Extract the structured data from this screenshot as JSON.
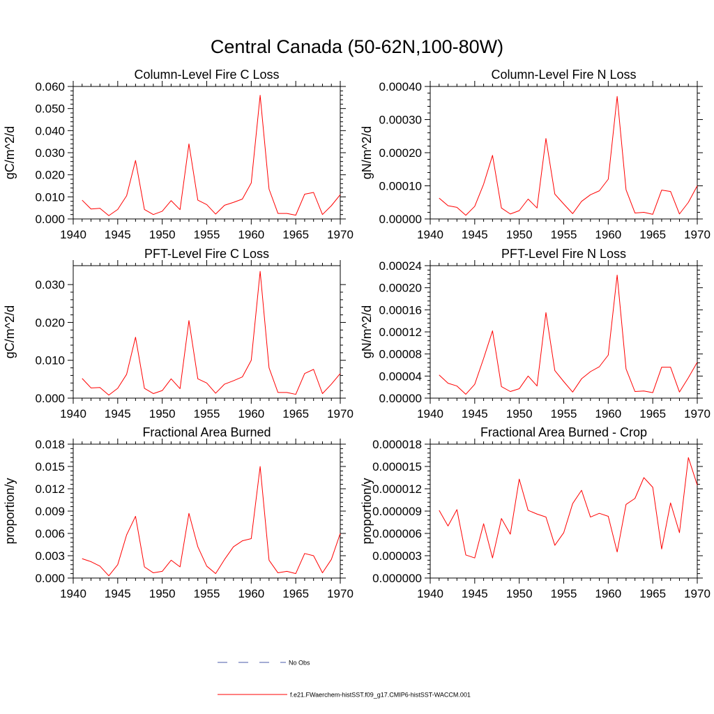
{
  "figure": {
    "title": "Central Canada (50-62N,100-80W)"
  },
  "legend": {
    "items": [
      {
        "label": "No Obs",
        "color": "#4a5aa8",
        "style": "dashed"
      },
      {
        "label": "f.e21.FWaerchem-histSST.f09_g17.CMIP6-histSST-WACCM.001",
        "color": "#ff0000",
        "style": "solid"
      }
    ]
  },
  "chart_data": [
    {
      "type": "line",
      "title": "Column-Level Fire C Loss",
      "ylabel": "gC/m^2/d",
      "xlim": [
        1940,
        1970
      ],
      "ylim": [
        0,
        0.06
      ],
      "xticks": [
        1940,
        1945,
        1950,
        1955,
        1960,
        1965,
        1970
      ],
      "xtick_labels": [
        "1940",
        "1945",
        "1950",
        "1955",
        "1960",
        "1965",
        "1970"
      ],
      "yticks": [
        0,
        0.01,
        0.02,
        0.03,
        0.04,
        0.05,
        0.06
      ],
      "ytick_labels": [
        "0.000",
        "0.010",
        "0.020",
        "0.030",
        "0.040",
        "0.050",
        "0.060"
      ],
      "color": "#ff0000",
      "x": [
        1941,
        1942,
        1943,
        1944,
        1945,
        1946,
        1947,
        1948,
        1949,
        1950,
        1951,
        1952,
        1953,
        1954,
        1955,
        1956,
        1957,
        1958,
        1959,
        1960,
        1961,
        1962,
        1963,
        1964,
        1965,
        1966,
        1967,
        1968,
        1969,
        1970
      ],
      "y": [
        0.0085,
        0.0045,
        0.0048,
        0.0015,
        0.0043,
        0.0105,
        0.0265,
        0.0043,
        0.002,
        0.0035,
        0.0083,
        0.0042,
        0.034,
        0.0085,
        0.0065,
        0.0022,
        0.0062,
        0.0075,
        0.009,
        0.0163,
        0.056,
        0.0135,
        0.0025,
        0.0025,
        0.0017,
        0.0112,
        0.012,
        0.002,
        0.006,
        0.011
      ]
    },
    {
      "type": "line",
      "title": "Column-Level Fire N Loss",
      "ylabel": "gN/m^2/d",
      "xlim": [
        1940,
        1970
      ],
      "ylim": [
        0,
        0.0004
      ],
      "xticks": [
        1940,
        1945,
        1950,
        1955,
        1960,
        1965,
        1970
      ],
      "xtick_labels": [
        "1940",
        "1945",
        "1950",
        "1955",
        "1960",
        "1965",
        "1970"
      ],
      "yticks": [
        0,
        0.0001,
        0.0002,
        0.0003,
        0.0004
      ],
      "ytick_labels": [
        "0.00000",
        "0.00010",
        "0.00020",
        "0.00030",
        "0.00040"
      ],
      "color": "#ff0000",
      "x": [
        1941,
        1942,
        1943,
        1944,
        1945,
        1946,
        1947,
        1948,
        1949,
        1950,
        1951,
        1952,
        1953,
        1954,
        1955,
        1956,
        1957,
        1958,
        1959,
        1960,
        1961,
        1962,
        1963,
        1964,
        1965,
        1966,
        1967,
        1968,
        1969,
        1970
      ],
      "y": [
        6.3e-05,
        4e-05,
        3.5e-05,
        1.1e-05,
        3.8e-05,
        0.000105,
        0.000192,
        3.3e-05,
        1.5e-05,
        2.5e-05,
        6e-05,
        3.3e-05,
        0.000243,
        7.5e-05,
        4.5e-05,
        1.6e-05,
        5.3e-05,
        7.3e-05,
        8.5e-05,
        0.00012,
        0.00037,
        8.8e-05,
        1.8e-05,
        2e-05,
        1.4e-05,
        8.7e-05,
        8.3e-05,
        1.5e-05,
        5e-05,
        0.0001
      ]
    },
    {
      "type": "line",
      "title": "PFT-Level Fire C Loss",
      "ylabel": "gC/m^2/d",
      "xlim": [
        1940,
        1970
      ],
      "ylim": [
        0,
        0.035
      ],
      "xticks": [
        1940,
        1945,
        1950,
        1955,
        1960,
        1965,
        1970
      ],
      "xtick_labels": [
        "1940",
        "1945",
        "1950",
        "1955",
        "1960",
        "1965",
        "1970"
      ],
      "yticks": [
        0,
        0.01,
        0.02,
        0.03
      ],
      "ytick_labels": [
        "0.000",
        "0.010",
        "0.020",
        "0.030"
      ],
      "color": "#ff0000",
      "x": [
        1941,
        1942,
        1943,
        1944,
        1945,
        1946,
        1947,
        1948,
        1949,
        1950,
        1951,
        1952,
        1953,
        1954,
        1955,
        1956,
        1957,
        1958,
        1959,
        1960,
        1961,
        1962,
        1963,
        1964,
        1965,
        1966,
        1967,
        1968,
        1969,
        1970
      ],
      "y": [
        0.0052,
        0.0027,
        0.0028,
        0.0008,
        0.0026,
        0.0063,
        0.0161,
        0.0026,
        0.0012,
        0.002,
        0.0051,
        0.0025,
        0.0205,
        0.0051,
        0.004,
        0.0013,
        0.0037,
        0.0046,
        0.0056,
        0.01,
        0.0335,
        0.008,
        0.0015,
        0.0015,
        0.001,
        0.0065,
        0.0076,
        0.0012,
        0.0037,
        0.0065
      ]
    },
    {
      "type": "line",
      "title": "PFT-Level Fire N Loss",
      "ylabel": "gN/m^2/d",
      "xlim": [
        1940,
        1970
      ],
      "ylim": [
        0,
        0.00024
      ],
      "xticks": [
        1940,
        1945,
        1950,
        1955,
        1960,
        1965,
        1970
      ],
      "xtick_labels": [
        "1940",
        "1945",
        "1950",
        "1955",
        "1960",
        "1965",
        "1970"
      ],
      "yticks": [
        0,
        4e-05,
        8e-05,
        0.00012,
        0.00016,
        0.0002,
        0.00024
      ],
      "ytick_labels": [
        "0.00000",
        "0.00004",
        "0.00008",
        "0.00012",
        "0.00016",
        "0.00020",
        "0.00024"
      ],
      "color": "#ff0000",
      "x": [
        1941,
        1942,
        1943,
        1944,
        1945,
        1946,
        1947,
        1948,
        1949,
        1950,
        1951,
        1952,
        1953,
        1954,
        1955,
        1956,
        1957,
        1958,
        1959,
        1960,
        1961,
        1962,
        1963,
        1964,
        1965,
        1966,
        1967,
        1968,
        1969,
        1970
      ],
      "y": [
        4.2e-05,
        2.7e-05,
        2.2e-05,
        7e-06,
        2.5e-05,
        7.2e-05,
        0.000122,
        2.1e-05,
        1.2e-05,
        1.7e-05,
        4e-05,
        2.2e-05,
        0.000155,
        5e-05,
        3e-05,
        1.1e-05,
        3.5e-05,
        4.8e-05,
        5.7e-05,
        7.8e-05,
        0.000223,
        5.3e-05,
        1.2e-05,
        1.3e-05,
        1e-05,
        5.6e-05,
        5.6e-05,
        1.1e-05,
        3.7e-05,
        6.5e-05
      ]
    },
    {
      "type": "line",
      "title": "Fractional Area Burned",
      "ylabel": "proportion/y",
      "xlim": [
        1940,
        1970
      ],
      "ylim": [
        0,
        0.018
      ],
      "xticks": [
        1940,
        1945,
        1950,
        1955,
        1960,
        1965,
        1970
      ],
      "xtick_labels": [
        "1940",
        "1945",
        "1950",
        "1955",
        "1960",
        "1965",
        "1970"
      ],
      "yticks": [
        0,
        0.003,
        0.006,
        0.009,
        0.012,
        0.015,
        0.018
      ],
      "ytick_labels": [
        "0.000",
        "0.003",
        "0.006",
        "0.009",
        "0.012",
        "0.015",
        "0.018"
      ],
      "color": "#ff0000",
      "x": [
        1941,
        1942,
        1943,
        1944,
        1945,
        1946,
        1947,
        1948,
        1949,
        1950,
        1951,
        1952,
        1953,
        1954,
        1955,
        1956,
        1957,
        1958,
        1959,
        1960,
        1961,
        1962,
        1963,
        1964,
        1965,
        1966,
        1967,
        1968,
        1969,
        1970
      ],
      "y": [
        0.0026,
        0.0022,
        0.0016,
        0.0003,
        0.0018,
        0.0058,
        0.0083,
        0.0015,
        0.0007,
        0.0009,
        0.0024,
        0.0015,
        0.0087,
        0.0042,
        0.0016,
        0.0006,
        0.0025,
        0.0042,
        0.005,
        0.0053,
        0.015,
        0.0024,
        0.0007,
        0.0009,
        0.0006,
        0.0033,
        0.003,
        0.0007,
        0.0025,
        0.006
      ]
    },
    {
      "type": "line",
      "title": "Fractional Area Burned - Crop",
      "ylabel": "proportion/y",
      "xlim": [
        1940,
        1970
      ],
      "ylim": [
        0,
        1.8e-05
      ],
      "xticks": [
        1940,
        1945,
        1950,
        1955,
        1960,
        1965,
        1970
      ],
      "xtick_labels": [
        "1940",
        "1945",
        "1950",
        "1955",
        "1960",
        "1965",
        "1970"
      ],
      "yticks": [
        0,
        3e-06,
        6e-06,
        9e-06,
        1.2e-05,
        1.5e-05,
        1.8e-05
      ],
      "ytick_labels": [
        "0.000000",
        "0.000003",
        "0.000006",
        "0.000009",
        "0.000012",
        "0.000015",
        "0.000018"
      ],
      "color": "#ff0000",
      "x": [
        1941,
        1942,
        1943,
        1944,
        1945,
        1946,
        1947,
        1948,
        1949,
        1950,
        1951,
        1952,
        1953,
        1954,
        1955,
        1956,
        1957,
        1958,
        1959,
        1960,
        1961,
        1962,
        1963,
        1964,
        1965,
        1966,
        1967,
        1968,
        1969,
        1970
      ],
      "y": [
        9.1e-06,
        7e-06,
        9.2e-06,
        3.1e-06,
        2.7e-06,
        7.3e-06,
        2.7e-06,
        8e-06,
        5.9e-06,
        1.33e-05,
        9.1e-06,
        8.6e-06,
        8.2e-06,
        4.4e-06,
        6.1e-06,
        1e-05,
        1.18e-05,
        8.2e-06,
        8.7e-06,
        8.3e-06,
        3.5e-06,
        9.9e-06,
        1.07e-05,
        1.35e-05,
        1.22e-05,
        3.9e-06,
        1.01e-05,
        6.1e-06,
        1.62e-05,
        1.25e-05
      ]
    }
  ]
}
